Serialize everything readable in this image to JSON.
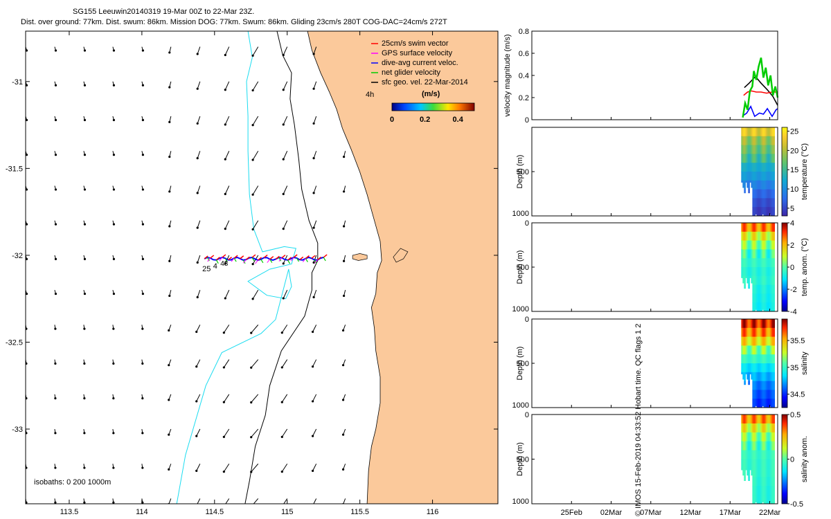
{
  "header": {
    "line1": "SG155 Leeuwin20140319 19-Mar 00Z to 22-Mar 23Z.",
    "line2": "Dist. over ground: 77km. Dist. swum: 86km. Mission DOG: 77km. Swum: 86km. Gliding 23cm/s 280T COG-DAC=24cm/s 272T"
  },
  "credit": "© IMOS 15-Feb-2019 04:33:52 Hobart time. QC flags 1  2",
  "map": {
    "x_ticks": [
      113.5,
      114,
      114.5,
      115,
      115.5,
      116
    ],
    "x_tick_labels": [
      "113.5",
      "114",
      "114.5",
      "115",
      "115.5",
      "116"
    ],
    "y_ticks": [
      -31,
      -31.5,
      -32,
      -32.5,
      -33
    ],
    "y_tick_labels": [
      "-31",
      "-31.5",
      "-32",
      "-32.5",
      "-33"
    ],
    "lon_range": [
      113.2,
      116.45
    ],
    "lat_range": [
      -33.43,
      -30.71
    ],
    "isobaths_label": "isobaths: 0   200  1000m",
    "land_color": "#fbc99b",
    "isobath_200_color": "#000000",
    "isobath_1000_color": "#19dcf0",
    "legend": [
      {
        "label": "25cm/s swim vector",
        "color": "#ff0000"
      },
      {
        "label": "GPS surface velocity",
        "color": "#ff00ff"
      },
      {
        "label": "dive-avg current veloc.",
        "color": "#0000ff"
      },
      {
        "label": "net glider velocity",
        "color": "#00cc00"
      },
      {
        "label": "sfc geo. vel. 22-Mar-2014",
        "color": "#000000"
      }
    ],
    "time_tag": "4h",
    "colorbar": {
      "title": "(m/s)",
      "tick_labels": [
        "0",
        "0.2",
        "0.4"
      ],
      "range": [
        0,
        0.5
      ]
    },
    "track_labels": [
      "25",
      "4",
      "48"
    ]
  },
  "chart_data": [
    {
      "type": "line",
      "title": "velocity magnitude",
      "ylabel": "velocity magnitude (m/s)",
      "ylim": [
        0,
        0.8
      ],
      "yticks": [
        0,
        0.2,
        0.4,
        0.6,
        0.8
      ],
      "y_tick_labels": [
        "0",
        "0.2",
        "0.4",
        "0.6",
        "0.8"
      ],
      "xlim_days": [
        0,
        31
      ],
      "series": [
        {
          "name": "sfc geo. vel.",
          "color": "#000000",
          "x": [
            26.8,
            27.4,
            28.2,
            28.9,
            29.7,
            30.4,
            31
          ],
          "y": [
            0.29,
            0.33,
            0.39,
            0.33,
            0.27,
            0.21,
            0.13
          ]
        },
        {
          "name": "swim vector",
          "color": "#ff0000",
          "x": [
            26.7,
            27.2,
            27.7,
            28.3,
            28.9,
            29.6,
            30.3,
            31
          ],
          "y": [
            0.22,
            0.25,
            0.26,
            0.25,
            0.25,
            0.24,
            0.25,
            0.25
          ]
        },
        {
          "name": "dive-avg current",
          "color": "#0000ff",
          "x": [
            26.7,
            27.1,
            27.6,
            28.1,
            28.7,
            29.2,
            29.7,
            30.3,
            30.8,
            31
          ],
          "y": [
            0.04,
            0.06,
            0.12,
            0.03,
            0.06,
            0.05,
            0.1,
            0.03,
            0.09,
            0.1
          ]
        },
        {
          "name": "net glider velocity",
          "color": "#00cc00",
          "x": [
            26.6,
            26.9,
            27.2,
            27.5,
            27.8,
            28.0,
            28.3,
            28.6,
            28.9,
            29.2,
            29.5,
            29.8,
            30.1,
            30.4,
            30.7,
            31
          ],
          "y": [
            0.02,
            0.15,
            0.09,
            0.26,
            0.3,
            0.44,
            0.36,
            0.48,
            0.56,
            0.38,
            0.47,
            0.31,
            0.4,
            0.22,
            0.3,
            0.2
          ]
        }
      ]
    },
    {
      "type": "heatmap",
      "title": "temperature",
      "clabel": "temperature (°C)",
      "ylabel": "Depth (m)",
      "ylim": [
        0,
        1000
      ],
      "y_tick_labels": [
        "500",
        "1000"
      ],
      "crange": [
        3,
        26
      ],
      "cticks": [
        5,
        10,
        15,
        20,
        25
      ],
      "ctick_labels": [
        "5",
        "10",
        "15",
        "20",
        "25"
      ],
      "colormap": "parula",
      "data_days": [
        26.4,
        30.6
      ],
      "profile_depths_m": [
        0,
        100,
        200,
        300,
        400,
        500,
        600,
        700,
        800,
        900,
        1000
      ],
      "profile_values": [
        22.5,
        19,
        17,
        15,
        12.5,
        11,
        9,
        7,
        5.5,
        4.5,
        4
      ]
    },
    {
      "type": "heatmap",
      "title": "temp. anom.",
      "clabel": "temp. anom. (°C)",
      "ylabel": "Depth (m)",
      "ylim": [
        0,
        1000
      ],
      "y_tick_labels": [
        "0",
        "500",
        "1000"
      ],
      "crange": [
        -4,
        4
      ],
      "cticks": [
        -4,
        -2,
        0,
        2,
        4
      ],
      "ctick_labels": [
        "-4",
        "-2",
        "0",
        "2",
        "4"
      ],
      "colormap": "jet",
      "data_days": [
        26.4,
        30.6
      ],
      "profile_depths_m": [
        0,
        100,
        200,
        300,
        400,
        500,
        600,
        700,
        800,
        900,
        1000
      ],
      "profile_values": [
        2.5,
        1.2,
        0.4,
        -0.3,
        -0.4,
        -0.6,
        -0.5,
        -0.7,
        -0.8,
        -0.9,
        -1
      ]
    },
    {
      "type": "heatmap",
      "title": "salinity",
      "clabel": "salinity",
      "ylabel": "Depth (m)",
      "ylim": [
        0,
        1000
      ],
      "y_tick_labels": [
        "0",
        "500",
        "1000"
      ],
      "crange": [
        34.25,
        35.9
      ],
      "cticks": [
        34.5,
        35,
        35.5
      ],
      "ctick_labels": [
        "34.5",
        "35",
        "35.5"
      ],
      "colormap": "jet",
      "data_days": [
        26.4,
        30.6
      ],
      "profile_depths_m": [
        0,
        100,
        200,
        300,
        400,
        500,
        600,
        700,
        800,
        900,
        1000
      ],
      "profile_values": [
        35.75,
        35.6,
        35.4,
        35.15,
        35.0,
        34.85,
        34.75,
        34.65,
        34.58,
        34.52,
        34.5
      ]
    },
    {
      "type": "heatmap",
      "title": "salinity anom.",
      "clabel": "salinity anom.",
      "ylabel": "Depth (m)",
      "ylim": [
        0,
        1000
      ],
      "y_tick_labels": [
        "0",
        "500",
        "1000"
      ],
      "crange": [
        -0.5,
        0.5
      ],
      "cticks": [
        -0.5,
        0,
        0.5
      ],
      "ctick_labels": [
        "-0.5",
        "0",
        "0.5"
      ],
      "colormap": "jet",
      "data_days": [
        26.4,
        30.6
      ],
      "profile_depths_m": [
        0,
        100,
        200,
        300,
        400,
        500,
        600,
        700,
        800,
        900,
        1000
      ],
      "profile_values": [
        0.3,
        0.15,
        0.05,
        -0.02,
        -0.04,
        -0.05,
        -0.05,
        -0.06,
        -0.07,
        -0.07,
        -0.08
      ]
    }
  ],
  "time_axis": {
    "xlim_days": [
      0,
      31
    ],
    "ticks_days": [
      5,
      10,
      15,
      20,
      25,
      30
    ],
    "tick_labels": [
      "25Feb",
      "02Mar",
      "07Mar",
      "12Mar",
      "17Mar",
      "22Mar"
    ]
  }
}
